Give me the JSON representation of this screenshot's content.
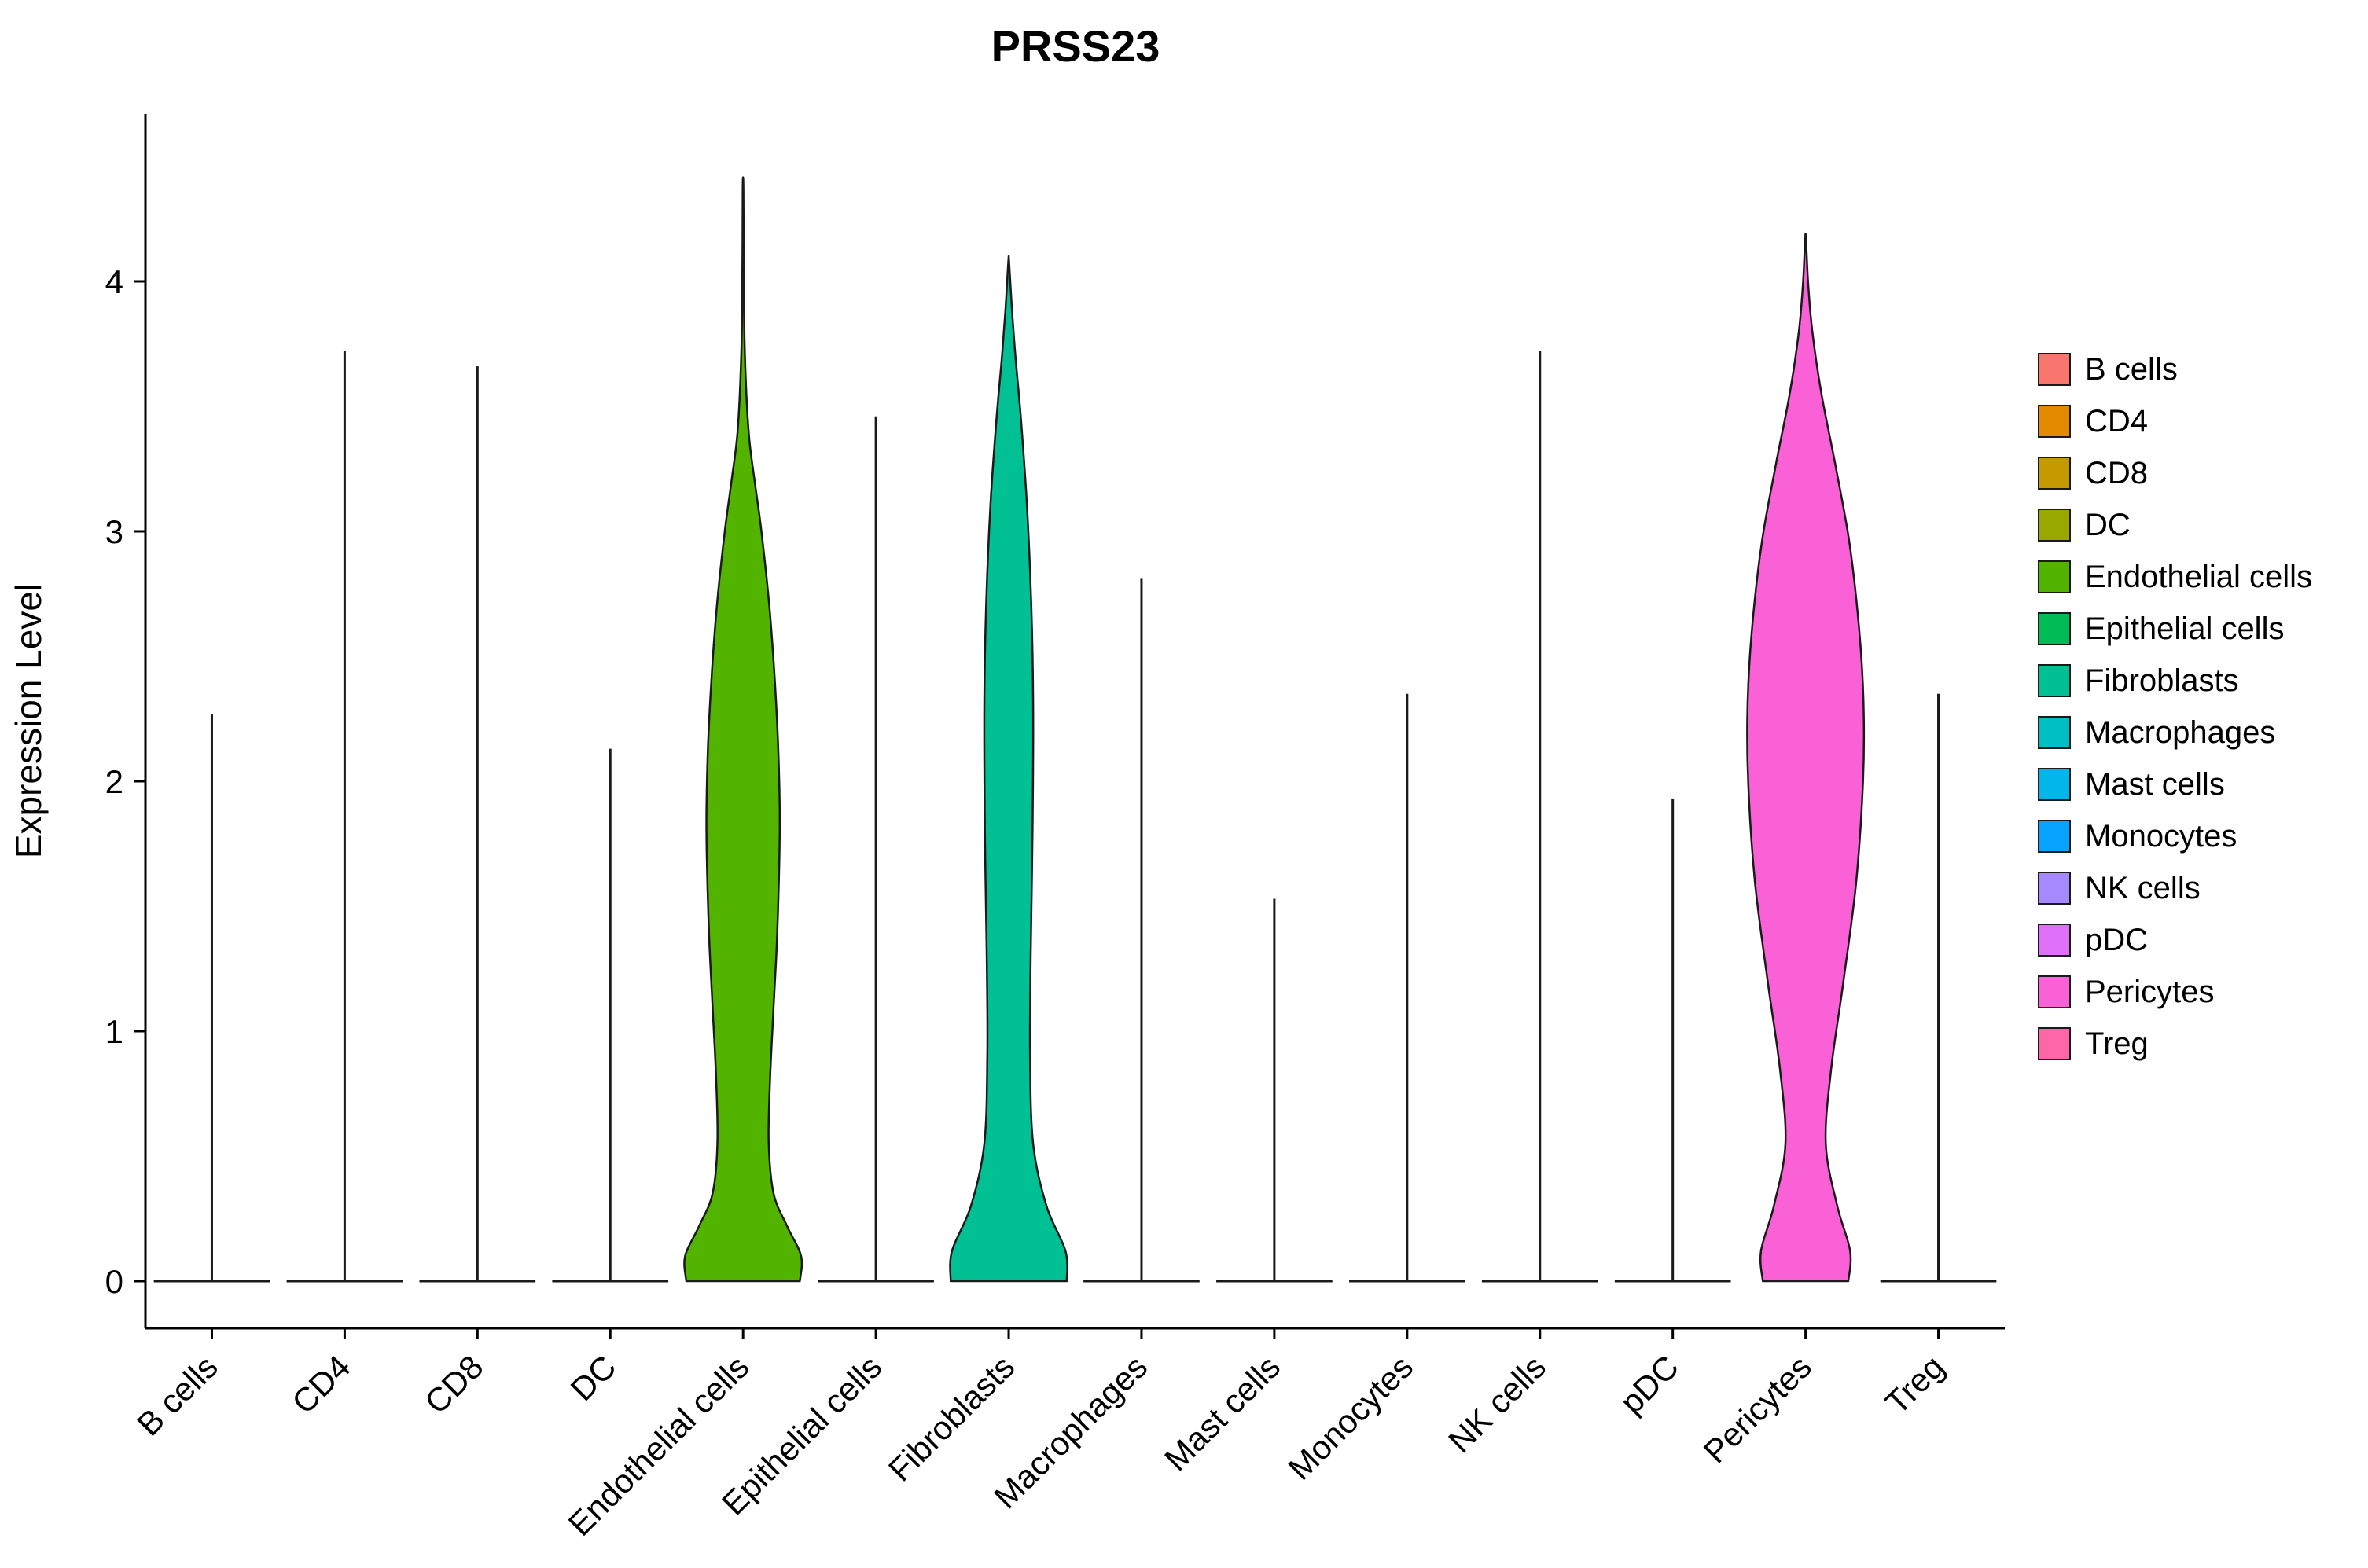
{
  "title": "PRSS23",
  "chart_data": {
    "type": "violin",
    "title": "PRSS23",
    "xlabel": "",
    "ylabel": "Expression Level",
    "ylim": [
      0,
      4.6
    ],
    "yticks": [
      0,
      1,
      2,
      3,
      4
    ],
    "grid": false,
    "legend_position": "right",
    "categories": [
      {
        "name": "B cells",
        "color": "#F8766D",
        "max": 2.27,
        "shape": "spike"
      },
      {
        "name": "CD4",
        "color": "#E38900",
        "max": 3.72,
        "shape": "spike"
      },
      {
        "name": "CD8",
        "color": "#C49A00",
        "max": 3.66,
        "shape": "spike"
      },
      {
        "name": "DC",
        "color": "#99A800",
        "max": 2.13,
        "shape": "spike"
      },
      {
        "name": "Endothelial cells",
        "color": "#53B400",
        "max": 4.37,
        "shape": "violin",
        "profile": [
          [
            0,
            0.93
          ],
          [
            0.1,
            0.95
          ],
          [
            0.22,
            0.72
          ],
          [
            0.35,
            0.5
          ],
          [
            0.55,
            0.42
          ],
          [
            0.8,
            0.44
          ],
          [
            1.1,
            0.5
          ],
          [
            1.4,
            0.56
          ],
          [
            1.8,
            0.6
          ],
          [
            2.1,
            0.58
          ],
          [
            2.4,
            0.52
          ],
          [
            2.7,
            0.43
          ],
          [
            3.0,
            0.3
          ],
          [
            3.2,
            0.19
          ],
          [
            3.4,
            0.09
          ],
          [
            3.7,
            0.03
          ],
          [
            4.0,
            0.012
          ],
          [
            4.37,
            0.006
          ]
        ]
      },
      {
        "name": "Epithelial cells",
        "color": "#00BC56",
        "max": 3.46,
        "shape": "spike"
      },
      {
        "name": "Fibroblasts",
        "color": "#00C094",
        "max": 4.08,
        "shape": "violin",
        "profile": [
          [
            0,
            0.95
          ],
          [
            0.12,
            0.93
          ],
          [
            0.3,
            0.62
          ],
          [
            0.55,
            0.4
          ],
          [
            0.9,
            0.35
          ],
          [
            1.3,
            0.36
          ],
          [
            1.8,
            0.39
          ],
          [
            2.3,
            0.4
          ],
          [
            2.7,
            0.37
          ],
          [
            3.1,
            0.3
          ],
          [
            3.45,
            0.2
          ],
          [
            3.7,
            0.11
          ],
          [
            3.9,
            0.05
          ],
          [
            4.08,
            0.006
          ]
        ]
      },
      {
        "name": "Macrophages",
        "color": "#00BFC4",
        "max": 2.81,
        "shape": "spike"
      },
      {
        "name": "Mast cells",
        "color": "#00B6EB",
        "max": 1.53,
        "shape": "spike"
      },
      {
        "name": "Monocytes",
        "color": "#06A4FF",
        "max": 2.35,
        "shape": "spike"
      },
      {
        "name": "NK cells",
        "color": "#A58AFF",
        "max": 3.72,
        "shape": "spike"
      },
      {
        "name": "pDC",
        "color": "#DF70F8",
        "max": 1.93,
        "shape": "spike"
      },
      {
        "name": "Pericytes",
        "color": "#FB61D7",
        "max": 4.17,
        "shape": "violin",
        "profile": [
          [
            0,
            0.7
          ],
          [
            0.12,
            0.73
          ],
          [
            0.3,
            0.52
          ],
          [
            0.55,
            0.33
          ],
          [
            0.85,
            0.42
          ],
          [
            1.2,
            0.62
          ],
          [
            1.6,
            0.83
          ],
          [
            2.0,
            0.94
          ],
          [
            2.3,
            0.95
          ],
          [
            2.6,
            0.88
          ],
          [
            2.95,
            0.72
          ],
          [
            3.25,
            0.5
          ],
          [
            3.55,
            0.26
          ],
          [
            3.8,
            0.11
          ],
          [
            4.0,
            0.04
          ],
          [
            4.17,
            0.006
          ]
        ]
      },
      {
        "name": "Treg",
        "color": "#FF66A8",
        "max": 2.35,
        "shape": "spike"
      }
    ]
  },
  "colors": {
    "axis": "#000000",
    "spike": "#1a1a1a",
    "violin_outline": "#1a1a1a",
    "background": "#ffffff",
    "text": "#000000"
  }
}
